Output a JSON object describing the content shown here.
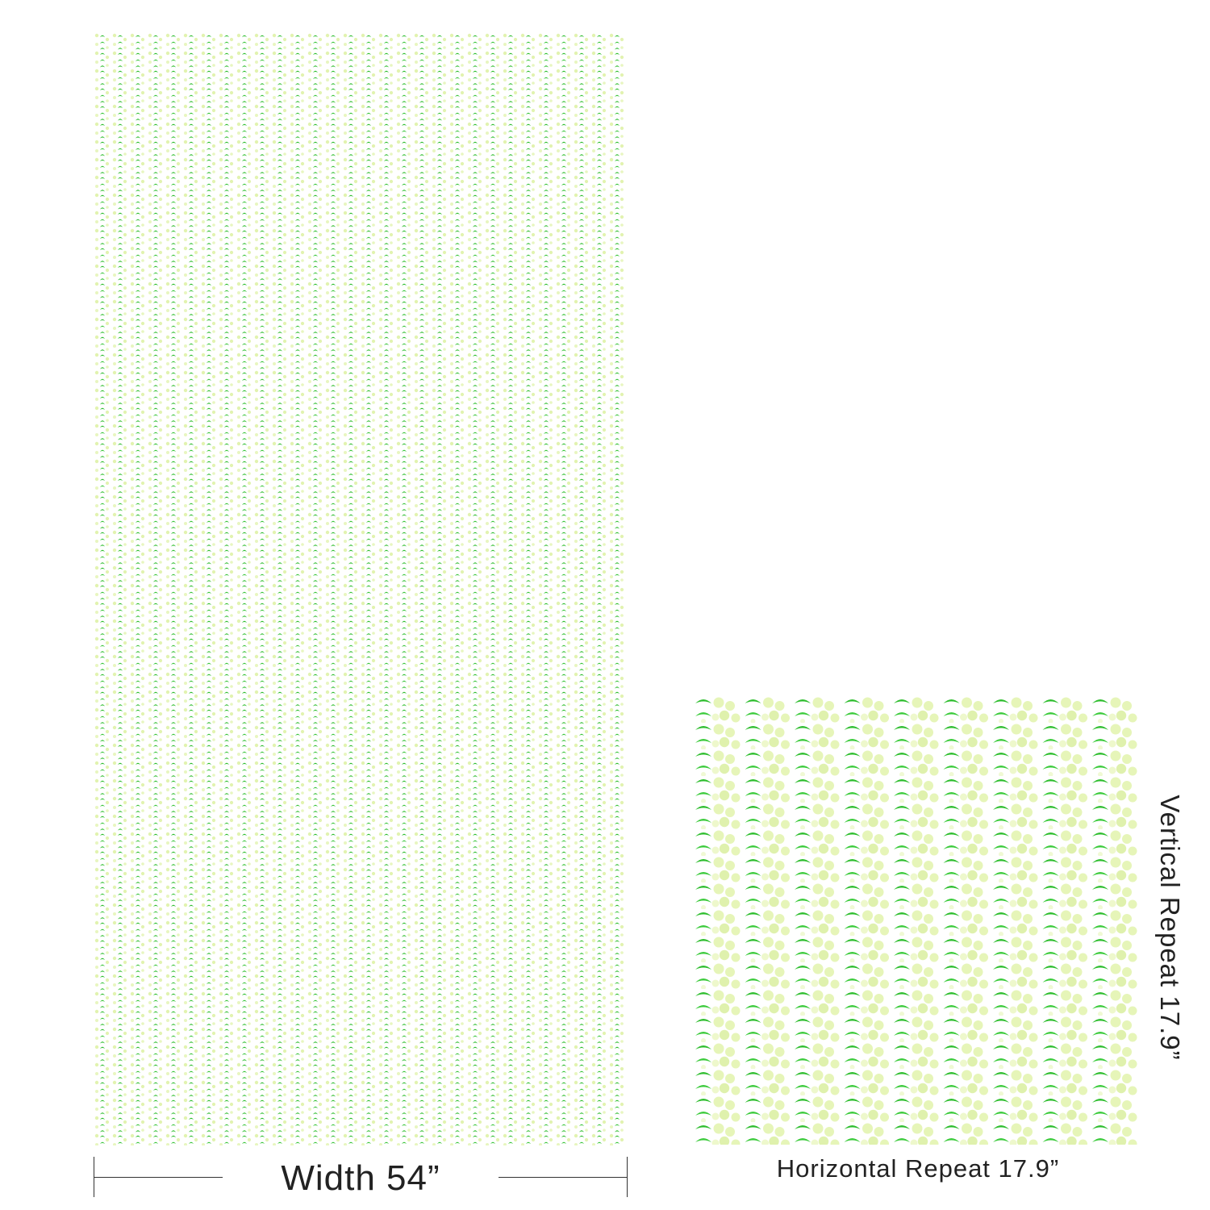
{
  "labels": {
    "width": "Width 54”",
    "horizontal_repeat": "Horizontal Repeat 17.9”",
    "vertical_repeat": "Vertical Repeat 17.9”"
  },
  "colors": {
    "background": "#ffffff",
    "crescent": "#2fbe2f",
    "dot_light": "#e6f5b8",
    "dot_mid": "#d7efa0"
  }
}
